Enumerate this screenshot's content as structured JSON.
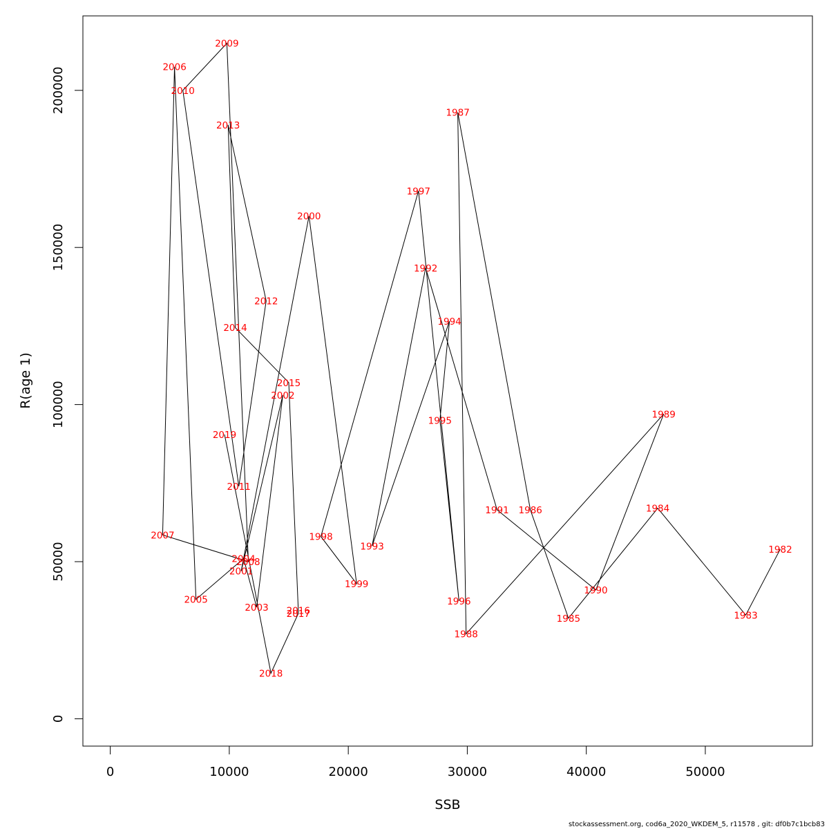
{
  "chart_data": {
    "type": "line",
    "xlabel": "SSB",
    "ylabel": "R(age 1)",
    "xlim": [
      -2300,
      59000
    ],
    "ylim": [
      -8700,
      223700
    ],
    "x_ticks": [
      0,
      10000,
      20000,
      30000,
      40000,
      50000
    ],
    "y_ticks": [
      0,
      50000,
      100000,
      150000,
      200000
    ],
    "grid": false,
    "series": [
      {
        "color": "#000000",
        "label_color": "#ff0000",
        "points": [
          {
            "year": "1982",
            "x": 56300,
            "y": 54000
          },
          {
            "year": "1983",
            "x": 53400,
            "y": 33000
          },
          {
            "year": "1984",
            "x": 46000,
            "y": 67000
          },
          {
            "year": "1985",
            "x": 38500,
            "y": 32000
          },
          {
            "year": "1986",
            "x": 35300,
            "y": 66500
          },
          {
            "year": "1987",
            "x": 29200,
            "y": 193000
          },
          {
            "year": "1988",
            "x": 29900,
            "y": 27000
          },
          {
            "year": "1989",
            "x": 46500,
            "y": 97000
          },
          {
            "year": "1990",
            "x": 40800,
            "y": 41000
          },
          {
            "year": "1991",
            "x": 32500,
            "y": 66500
          },
          {
            "year": "1992",
            "x": 26500,
            "y": 143500
          },
          {
            "year": "1993",
            "x": 22000,
            "y": 55000
          },
          {
            "year": "1994",
            "x": 28500,
            "y": 126500
          },
          {
            "year": "1995",
            "x": 27700,
            "y": 95000
          },
          {
            "year": "1996",
            "x": 29300,
            "y": 37500
          },
          {
            "year": "1997",
            "x": 25900,
            "y": 168000
          },
          {
            "year": "1998",
            "x": 17700,
            "y": 58000
          },
          {
            "year": "1999",
            "x": 20700,
            "y": 43000
          },
          {
            "year": "2000",
            "x": 16700,
            "y": 160000
          },
          {
            "year": "2001",
            "x": 11000,
            "y": 47000
          },
          {
            "year": "2002",
            "x": 14500,
            "y": 103000
          },
          {
            "year": "2003",
            "x": 12300,
            "y": 35500
          },
          {
            "year": "2004",
            "x": 11200,
            "y": 51000
          },
          {
            "year": "2005",
            "x": 7200,
            "y": 38000
          },
          {
            "year": "2006",
            "x": 5400,
            "y": 207500
          },
          {
            "year": "2007",
            "x": 4400,
            "y": 58500
          },
          {
            "year": "2008",
            "x": 11600,
            "y": 50000
          },
          {
            "year": "2009",
            "x": 9800,
            "y": 215000
          },
          {
            "year": "2010",
            "x": 6100,
            "y": 200000
          },
          {
            "year": "2011",
            "x": 10800,
            "y": 74000
          },
          {
            "year": "2012",
            "x": 13100,
            "y": 133000
          },
          {
            "year": "2013",
            "x": 9900,
            "y": 189000
          },
          {
            "year": "2014",
            "x": 10500,
            "y": 124500
          },
          {
            "year": "2015",
            "x": 15000,
            "y": 107000
          },
          {
            "year": "2016",
            "x": 15800,
            "y": 34500
          },
          {
            "year": "2017",
            "x": 15800,
            "y": 33500
          },
          {
            "year": "2018",
            "x": 13500,
            "y": 14500
          },
          {
            "year": "2019",
            "x": 9600,
            "y": 90500
          }
        ]
      }
    ]
  },
  "footer": {
    "credit": "stockassessment.org, cod6a_2020_WKDEM_5, r11578 , git: df0b7c1bcb83"
  }
}
